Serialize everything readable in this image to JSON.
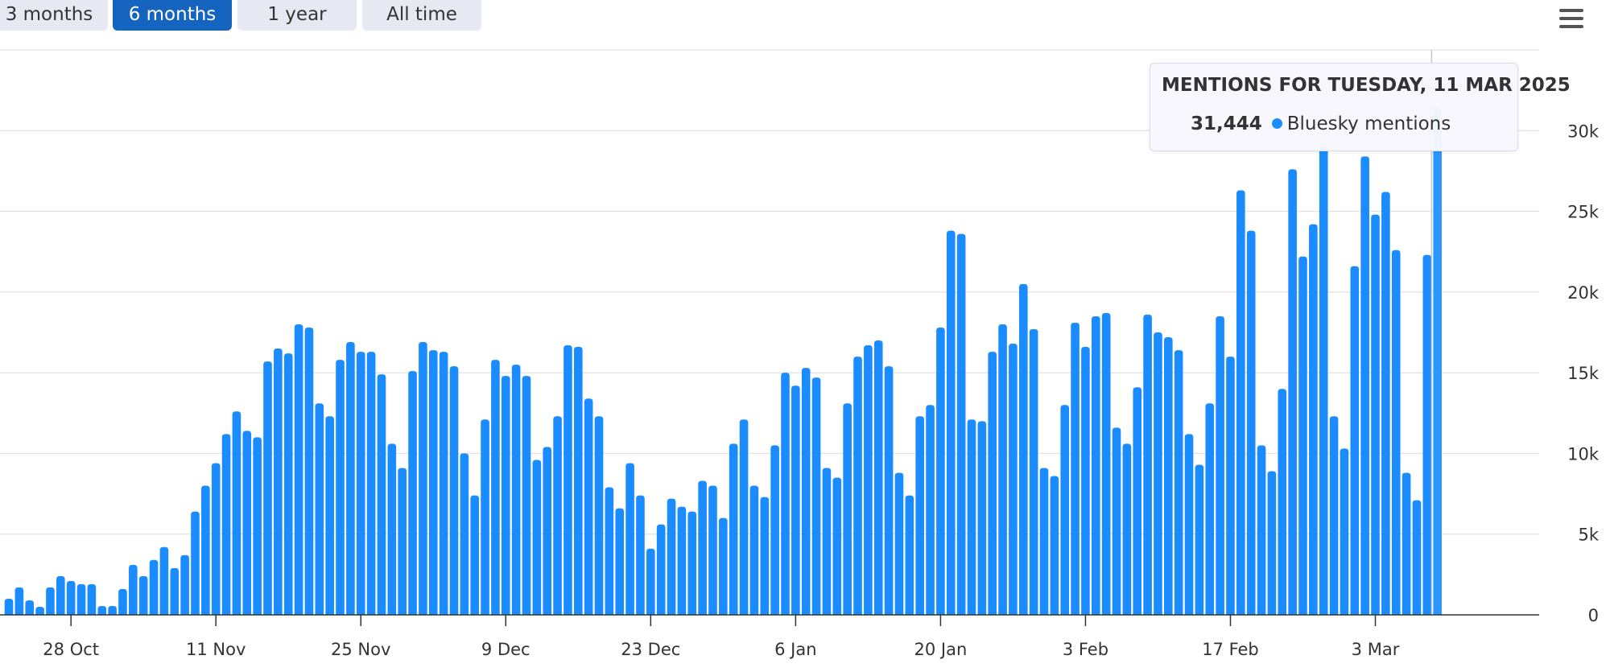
{
  "range_selector": {
    "buttons": [
      {
        "label": "3 months",
        "active": false
      },
      {
        "label": "6 months",
        "active": true
      },
      {
        "label": "1 year",
        "active": false
      },
      {
        "label": "All time",
        "active": false
      }
    ]
  },
  "menu": {
    "icon": "hamburger-menu-icon"
  },
  "tooltip": {
    "title": "MENTIONS FOR TUESDAY, 11 MAR 2025",
    "value": "31,444",
    "series_name": "Bluesky mentions"
  },
  "colors": {
    "bar": "#1a8cff",
    "grid": "#e0e0e0",
    "active_button": "#1565c0"
  },
  "chart_data": {
    "type": "bar",
    "title": "",
    "xlabel": "",
    "ylabel": "",
    "ylim": [
      0,
      35000
    ],
    "y_ticks": [
      0,
      5000,
      10000,
      15000,
      20000,
      25000,
      30000
    ],
    "y_tick_labels": [
      "0",
      "5k",
      "10k",
      "15k",
      "20k",
      "25k",
      "30k"
    ],
    "x_tick_labels": [
      {
        "label": "28 Oct",
        "index": 6
      },
      {
        "label": "11 Nov",
        "index": 20
      },
      {
        "label": "25 Nov",
        "index": 34
      },
      {
        "label": "9 Dec",
        "index": 48
      },
      {
        "label": "23 Dec",
        "index": 62
      },
      {
        "label": "6 Jan",
        "index": 76
      },
      {
        "label": "20 Jan",
        "index": 90
      },
      {
        "label": "3 Feb",
        "index": 104
      },
      {
        "label": "17 Feb",
        "index": 118
      },
      {
        "label": "3 Mar",
        "index": 132
      }
    ],
    "series": [
      {
        "name": "Bluesky mentions",
        "values": [
          1000,
          1700,
          900,
          500,
          1700,
          2400,
          2100,
          1900,
          1900,
          550,
          550,
          1600,
          3100,
          2400,
          3400,
          4200,
          2900,
          3700,
          6400,
          8000,
          9400,
          11200,
          12600,
          11400,
          11000,
          15700,
          16500,
          16200,
          18000,
          17800,
          13100,
          12300,
          15800,
          16900,
          16300,
          16300,
          14900,
          10600,
          9100,
          15100,
          16900,
          16400,
          16300,
          15400,
          10000,
          7400,
          12100,
          15800,
          14800,
          15500,
          14800,
          9600,
          10400,
          12300,
          16700,
          16600,
          13400,
          12300,
          7900,
          6600,
          9400,
          7400,
          4100,
          5600,
          7200,
          6700,
          6400,
          8300,
          8000,
          6000,
          10600,
          12100,
          8000,
          7300,
          10500,
          15000,
          14200,
          15300,
          14700,
          9100,
          8500,
          13100,
          16000,
          16700,
          17000,
          15400,
          8800,
          7400,
          12300,
          13000,
          17800,
          23800,
          23600,
          12100,
          12000,
          16300,
          18000,
          16800,
          20500,
          17700,
          9100,
          8600,
          13000,
          18100,
          16600,
          18500,
          18700,
          11600,
          10600,
          14100,
          18600,
          17500,
          17200,
          16400,
          11200,
          9300,
          13100,
          18500,
          16000,
          26300,
          23800,
          10500,
          8900,
          14000,
          27600,
          22200,
          24200,
          29000,
          12300,
          10300,
          21600,
          28400,
          24800,
          26200,
          22600,
          8800,
          7100,
          22300,
          31444
        ]
      }
    ]
  }
}
